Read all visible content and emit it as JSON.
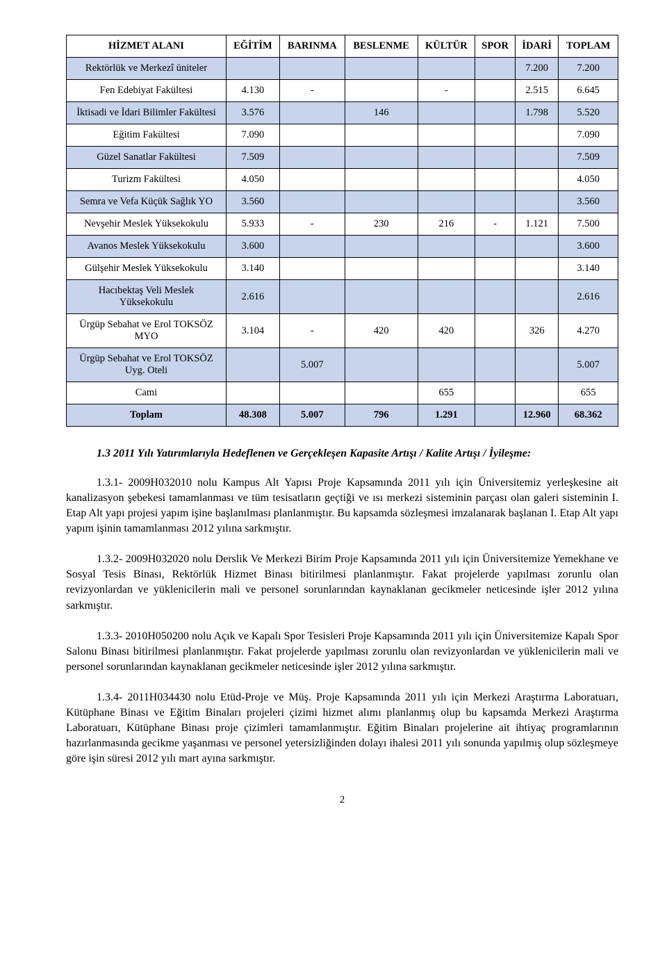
{
  "table": {
    "headers": [
      "HİZMET ALANI",
      "EĞİTİM",
      "BARINMA",
      "BESLENME",
      "KÜLTÜR",
      "SPOR",
      "İDARİ",
      "TOPLAM"
    ],
    "rows": [
      {
        "style": "blue",
        "cells": [
          "Rektörlük ve Merkezî üniteler",
          "",
          "",
          "",
          "",
          "",
          "7.200",
          "7.200"
        ]
      },
      {
        "style": "white",
        "cells": [
          "Fen Edebiyat Fakültesi",
          "4.130",
          "-",
          "",
          "-",
          "",
          "2.515",
          "6.645"
        ]
      },
      {
        "style": "blue",
        "cells": [
          "İktisadi ve İdari Bilimler Fakültesi",
          "3.576",
          "",
          "146",
          "",
          "",
          "1.798",
          "5.520"
        ]
      },
      {
        "style": "white",
        "cells": [
          "Eğitim Fakültesi",
          "7.090",
          "",
          "",
          "",
          "",
          "",
          "7.090"
        ]
      },
      {
        "style": "blue",
        "cells": [
          "Güzel Sanatlar Fakültesi",
          "7.509",
          "",
          "",
          "",
          "",
          "",
          "7.509"
        ]
      },
      {
        "style": "white",
        "cells": [
          "Turizm Fakültesi",
          "4.050",
          "",
          "",
          "",
          "",
          "",
          "4.050"
        ]
      },
      {
        "style": "blue",
        "cells": [
          "Semra ve Vefa Küçük Sağlık YO",
          "3.560",
          "",
          "",
          "",
          "",
          "",
          "3.560"
        ]
      },
      {
        "style": "white",
        "cells": [
          "Nevşehir Meslek Yüksekokulu",
          "5.933",
          "-",
          "230",
          "216",
          "-",
          "1.121",
          "7.500"
        ]
      },
      {
        "style": "blue",
        "cells": [
          "Avanos Meslek Yüksekokulu",
          "3.600",
          "",
          "",
          "",
          "",
          "",
          "3.600"
        ]
      },
      {
        "style": "white",
        "cells": [
          "Gülşehir Meslek Yüksekokulu",
          "3.140",
          "",
          "",
          "",
          "",
          "",
          "3.140"
        ]
      },
      {
        "style": "blue",
        "cells": [
          "Hacıbektaş Veli Meslek Yüksekokulu",
          "2.616",
          "",
          "",
          "",
          "",
          "",
          "2.616"
        ]
      },
      {
        "style": "white",
        "cells": [
          "Ürgüp Sebahat ve Erol TOKSÖZ MYO",
          "3.104",
          "-",
          "420",
          "420",
          "",
          "326",
          "4.270"
        ]
      },
      {
        "style": "blue",
        "cells": [
          "Ürgüp Sebahat ve Erol TOKSÖZ Uyg. Oteli",
          "",
          "5.007",
          "",
          "",
          "",
          "",
          "5.007"
        ]
      },
      {
        "style": "white",
        "cells": [
          "Cami",
          "",
          "",
          "",
          "655",
          "",
          "",
          "655"
        ]
      },
      {
        "style": "blue-bold",
        "cells": [
          "Toplam",
          "48.308",
          "5.007",
          "796",
          "1.291",
          "",
          "12.960",
          "68.362"
        ]
      }
    ]
  },
  "heading": "1.3 2011 Yılı Yatırımlarıyla Hedeflenen ve Gerçekleşen Kapasite Artışı / Kalite Artışı / İyileşme:",
  "paragraphs": [
    "1.3.1- 2009H032010 nolu Kampus Alt Yapısı Proje Kapsamında 2011 yılı için Üniversitemiz yerleşkesine ait kanalizasyon şebekesi tamamlanması ve tüm tesisatların geçtiği ve ısı merkezi sisteminin parçası olan galeri sisteminin I. Etap Alt yapı projesi yapım işine başlanılması planlanmıştır. Bu kapsamda sözleşmesi imzalanarak başlanan I. Etap Alt yapı yapım işinin tamamlanması 2012 yılına sarkmıştır.",
    "1.3.2- 2009H032020 nolu Derslik Ve Merkezi Birim Proje Kapsamında 2011 yılı için Üniversitemize Yemekhane ve Sosyal Tesis Binası, Rektörlük Hizmet Binası bitirilmesi planlanmıştır. Fakat projelerde yapılması zorunlu olan revizyonlardan  ve yüklenicilerin mali ve personel sorunlarından kaynaklanan gecikmeler neticesinde işler 2012 yılına sarkmıştır.",
    "1.3.3- 2010H050200 nolu Açık ve Kapalı Spor Tesisleri Proje Kapsamında 2011 yılı için Üniversitemize Kapalı Spor Salonu Binası bitirilmesi planlanmıştır. Fakat projelerde yapılması zorunlu olan revizyonlardan  ve yüklenicilerin mali ve personel sorunlarından kaynaklanan gecikmeler neticesinde işler 2012 yılına sarkmıştır.",
    "1.3.4- 2011H034430 nolu  Etüd-Proje ve Müş. Proje Kapsamında 2011 yılı için Merkezi Araştırma Laboratuarı, Kütüphane Binası ve Eğitim Binaları projeleri çizimi hizmet alımı planlanmış olup bu kapsamda Merkezi Araştırma Laboratuarı, Kütüphane Binası proje çizimleri tamamlanmıştır. Eğitim Binaları projelerine ait ihtiyaç programlarının hazırlanmasında gecikme yaşanması ve personel yetersizliğinden dolayı ihalesi 2011 yılı sonunda yapılmış olup sözleşmeye göre işin süresi 2012 yılı mart ayına sarkmıştır."
  ],
  "page_number": "2"
}
